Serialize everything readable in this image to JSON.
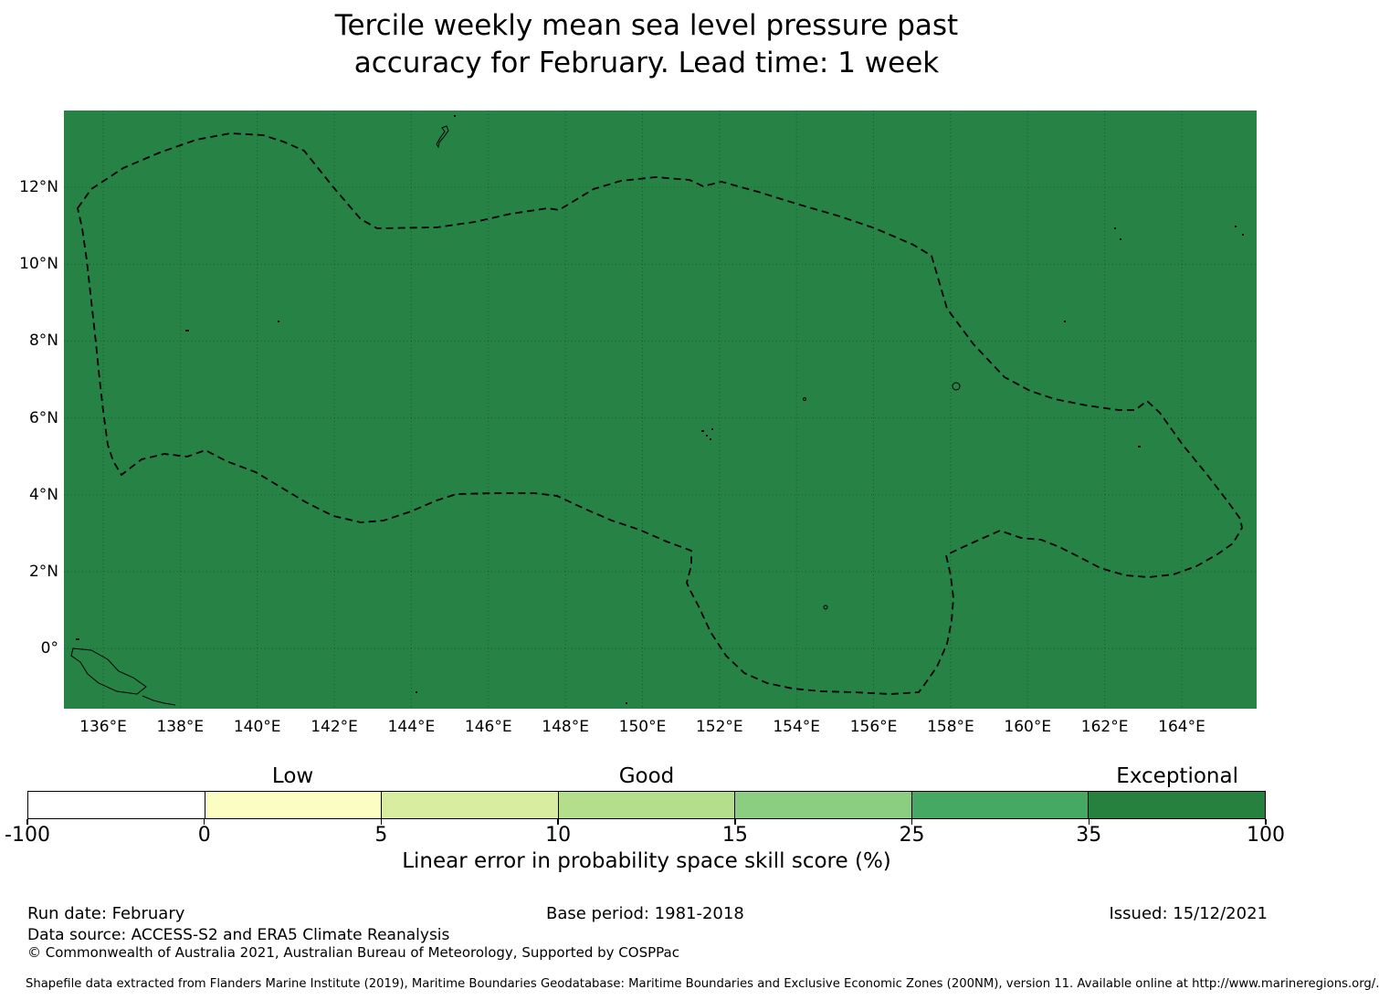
{
  "title": {
    "line1": "Tercile weekly mean sea level pressure past",
    "line2": "accuracy for February. Lead time: 1 week"
  },
  "map": {
    "fill_color": "#278246",
    "lat_ticks": [
      "12°N",
      "10°N",
      "8°N",
      "6°N",
      "4°N",
      "2°N",
      "0°"
    ],
    "lon_ticks": [
      "136°E",
      "138°E",
      "140°E",
      "142°E",
      "144°E",
      "146°E",
      "148°E",
      "150°E",
      "152°E",
      "154°E",
      "156°E",
      "158°E",
      "160°E",
      "162°E",
      "164°E"
    ]
  },
  "colorbar": {
    "categories": [
      "Low",
      "Good",
      "Exceptional"
    ],
    "tick_labels": [
      "-100",
      "0",
      "5",
      "10",
      "15",
      "25",
      "35",
      "100"
    ],
    "segment_colors": [
      "#ffffff",
      "#fbfdc3",
      "#d9eda1",
      "#b4dd8c",
      "#8bce82",
      "#46a963",
      "#26813e"
    ],
    "axis_label": "Linear error in probability space skill score (%)"
  },
  "footer": {
    "run_date": "Run date: February",
    "base_period": "Base period: 1981-2018",
    "issued": "Issued: 15/12/2021",
    "data_source": "Data source: ACCESS-S2 and ERA5 Climate Reanalysis",
    "copyright": "© Commonwealth of Australia 2021, Australian Bureau of Meteorology, Supported by COSPPac",
    "shapefile_note": "Shapefile data extracted from Flanders Marine Institute (2019), Maritime Boundaries Geodatabase: Maritime Boundaries and Exclusive Economic Zones (200NM), version 11. Available online at http://www.marineregions.org/."
  },
  "chart_data": {
    "type": "heatmap",
    "title": "Tercile weekly mean sea level pressure past accuracy for February. Lead time: 1 week",
    "x_tick_labels": [
      "136°E",
      "138°E",
      "140°E",
      "142°E",
      "144°E",
      "146°E",
      "148°E",
      "150°E",
      "152°E",
      "154°E",
      "156°E",
      "158°E",
      "160°E",
      "162°E",
      "164°E"
    ],
    "y_tick_labels": [
      "12°N",
      "10°N",
      "8°N",
      "6°N",
      "4°N",
      "2°N",
      "0°"
    ],
    "x_range_deg_east": [
      135,
      166
    ],
    "y_range_deg_north": [
      -1.6,
      14
    ],
    "grid": "dotted 2-degree graticule",
    "field_label": "Linear error in probability space skill score (%)",
    "values_summary": "Entire mapped ocean region is a single uniform dark-green fill, i.e. every cell falls in the top 35-100 (Exceptional) skill bin",
    "uniform_bin": [
      35,
      100
    ],
    "colorbar": {
      "orientation": "horizontal",
      "boundaries": [
        -100,
        0,
        5,
        10,
        15,
        25,
        35,
        100
      ],
      "segment_colors": [
        "#ffffff",
        "#fbfdc3",
        "#d9eda1",
        "#b4dd8c",
        "#8bce82",
        "#46a963",
        "#26813e"
      ],
      "category_labels": [
        "Low",
        "Good",
        "Exceptional"
      ],
      "category_spans": [
        [
          0,
          5
        ],
        [
          10,
          15
        ],
        [
          35,
          100
        ]
      ],
      "label": "Linear error in probability space skill score (%)"
    },
    "overlays": [
      "dashed EEZ maritime boundary outline",
      "small island coastlines (Guam, Yap, Chuuk, Pohnpei, Kosrae, New Guinea coast)",
      "2° latitude/longitude dotted gridlines"
    ]
  }
}
